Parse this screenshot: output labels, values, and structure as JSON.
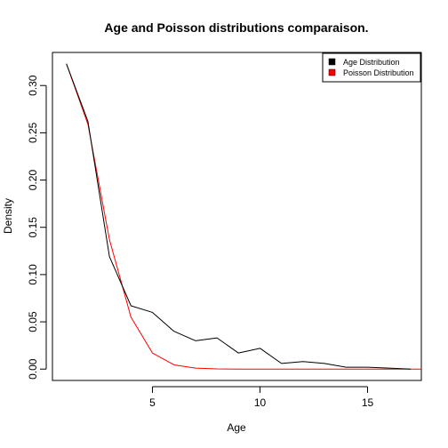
{
  "chart_data": {
    "type": "line",
    "title": "Age and Poisson distributions comparaison.",
    "xlabel": "Age",
    "ylabel": "Density",
    "xlim": [
      0.35,
      17.5
    ],
    "ylim": [
      -0.012,
      0.335
    ],
    "x_ticks": [
      5,
      10,
      15
    ],
    "y_ticks": [
      0.0,
      0.05,
      0.1,
      0.15,
      0.2,
      0.25,
      0.3
    ],
    "y_tick_labels": [
      "0.00",
      "0.05",
      "0.10",
      "0.15",
      "0.20",
      "0.25",
      "0.30"
    ],
    "x_tick_labels": [
      "5",
      "10",
      "15"
    ],
    "grid": false,
    "legend_position": "top-right",
    "series": [
      {
        "name": "Age Distribution",
        "color": "#000000",
        "x": [
          1,
          2,
          3,
          4,
          5,
          6,
          7,
          8,
          9,
          10,
          11,
          12,
          13,
          14,
          15,
          16,
          17
        ],
        "y": [
          0.323,
          0.262,
          0.119,
          0.067,
          0.06,
          0.04,
          0.03,
          0.033,
          0.017,
          0.022,
          0.006,
          0.008,
          0.006,
          0.002,
          0.002,
          0.001,
          0.0
        ]
      },
      {
        "name": "Poisson Distribution",
        "color": "#ff0000",
        "x": [
          1,
          2,
          3,
          4,
          5,
          6,
          7,
          8,
          9,
          10,
          11,
          12,
          13,
          14,
          15,
          16,
          17,
          18
        ],
        "y": [
          0.323,
          0.259,
          0.137,
          0.055,
          0.017,
          0.0045,
          0.001,
          0.0002,
          0.0,
          0.0,
          0.0,
          0.0,
          0.0,
          0.0,
          0.0,
          0.0,
          0.0,
          0.0
        ]
      }
    ]
  }
}
